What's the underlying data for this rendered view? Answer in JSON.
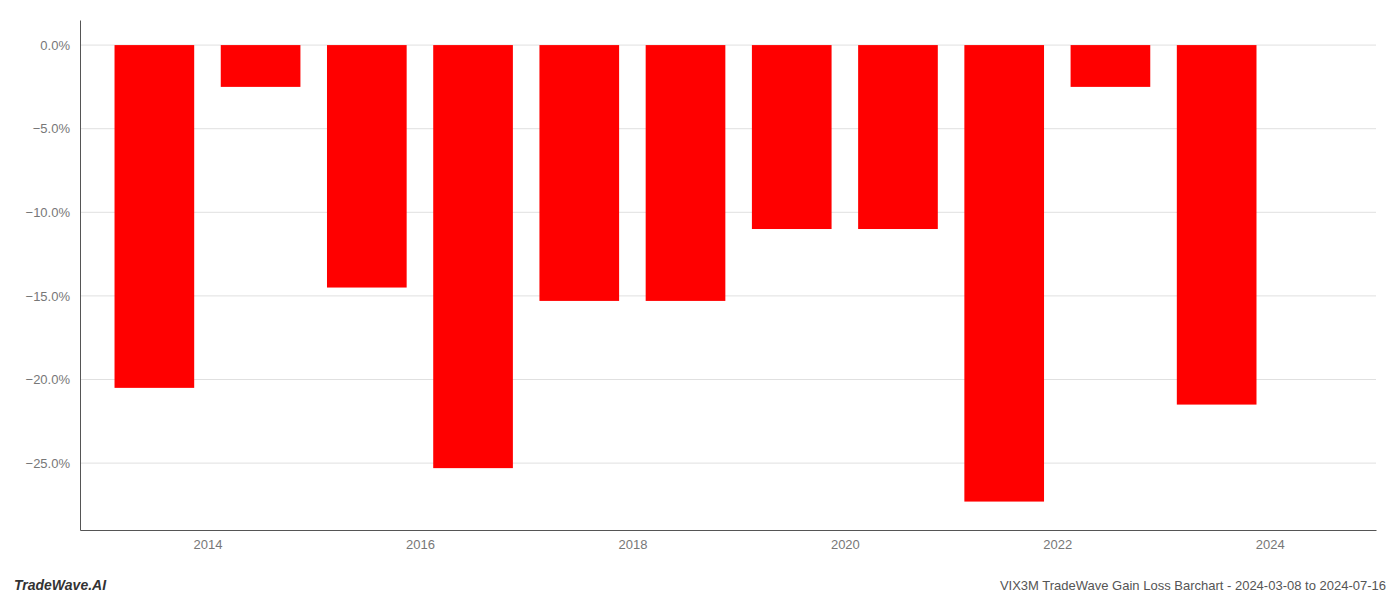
{
  "chart_data": {
    "type": "bar",
    "title": "VIX3M TradeWave Gain Loss Barchart - 2024-03-08 to 2024-07-16",
    "annotations": [
      "TradeWave.AI"
    ],
    "x": [
      2013.5,
      2014.5,
      2015.5,
      2016.5,
      2017.5,
      2018.5,
      2019.5,
      2020.5,
      2021.5,
      2022.5,
      2023.5
    ],
    "values": [
      -20.5,
      -2.5,
      -14.5,
      -25.3,
      -15.3,
      -15.3,
      -11.0,
      -11.0,
      -27.3,
      -2.5,
      -21.5
    ],
    "color": "#ff0000",
    "xlim": [
      2012.8,
      2025.0
    ],
    "xticks": [
      2014,
      2016,
      2018,
      2020,
      2022,
      2024
    ],
    "ylim": [
      -29,
      1.5
    ],
    "yticks": [
      {
        "value": 0.0,
        "label": "0.0%"
      },
      {
        "value": -5.0,
        "label": "−5.0%"
      },
      {
        "value": -10.0,
        "label": "−10.0%"
      },
      {
        "value": -15.0,
        "label": "−15.0%"
      },
      {
        "value": -20.0,
        "label": "−20.0%"
      },
      {
        "value": -25.0,
        "label": "−25.0%"
      }
    ],
    "grid": true
  }
}
